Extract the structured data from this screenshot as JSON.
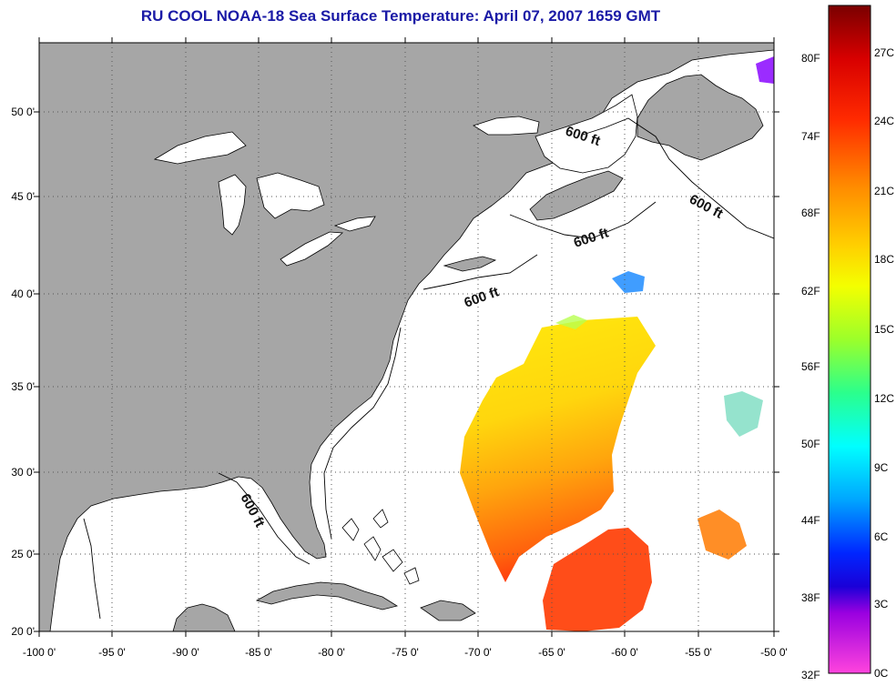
{
  "title": "RU COOL  NOAA-18  Sea Surface Temperature:  April 07, 2007 1659 GMT",
  "map": {
    "lon_labels": [
      "-100 0'",
      "-95 0'",
      "-90 0'",
      "-85 0'",
      "-80 0'",
      "-75 0'",
      "-70 0'",
      "-65 0'",
      "-60 0'",
      "-55 0'",
      "-50 0'"
    ],
    "lat_labels": [
      "50 0'",
      "45 0'",
      "40 0'",
      "35 0'",
      "30 0'",
      "25 0'",
      "20 0'"
    ],
    "depth_labels": [
      "600 ft",
      "600 ft",
      "600 ft",
      "600 ft",
      "600 ft"
    ],
    "colors": {
      "land": "#a6a6a6",
      "ocean": "#ffffff",
      "grid": "#555555"
    }
  },
  "colorbar": {
    "fahrenheit": [
      "80F",
      "74F",
      "68F",
      "62F",
      "56F",
      "50F",
      "44F",
      "38F",
      "32F"
    ],
    "celsius": [
      "27C",
      "24C",
      "21C",
      "18C",
      "15C",
      "12C",
      "9C",
      "6C",
      "3C",
      "0C"
    ]
  }
}
